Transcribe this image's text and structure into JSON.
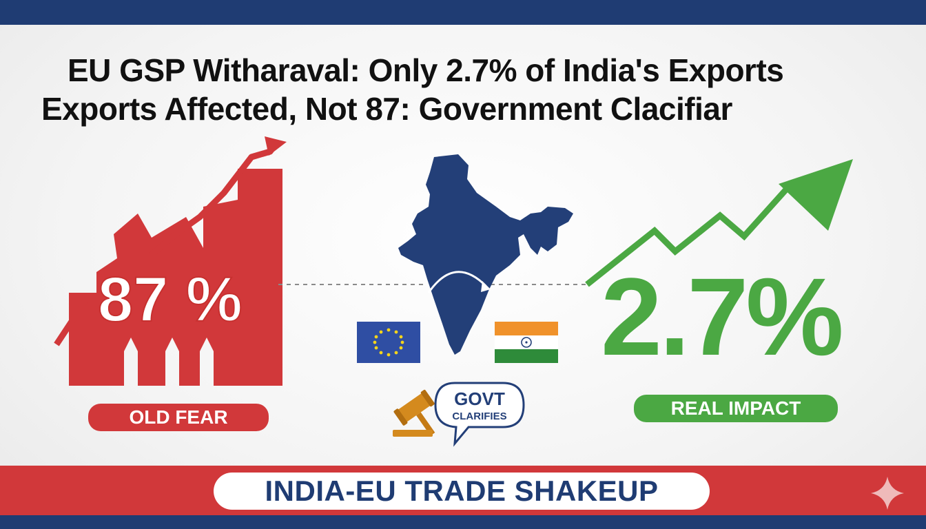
{
  "headline": {
    "line1": "EU GSP Witharaval: Only 2.7% of India's Exports",
    "line2": "Exports Affected, Not 87: Government Clacifiar"
  },
  "left_panel": {
    "percent": "87 %",
    "label": "OLD FEAR",
    "color": "#d1383a"
  },
  "center_panel": {
    "map_icon": "india-map-icon",
    "eu_flag_icon": "eu-flag-icon",
    "india_flag_icon": "india-flag-icon",
    "gavel_icon": "gavel-icon",
    "bubble_line1": "GOVT",
    "bubble_line2": "CLARIFIES",
    "map_color": "#233f78"
  },
  "right_panel": {
    "percent": "2.7%",
    "label": "REAL IMPACT",
    "color": "#4ba843"
  },
  "footer": {
    "banner_text": "INDIA-EU TRADE SHAKEUP",
    "sparkle_icon": "sparkle-icon"
  },
  "colors": {
    "navy": "#1f3c73",
    "red": "#d1383a",
    "green": "#4ba843"
  }
}
